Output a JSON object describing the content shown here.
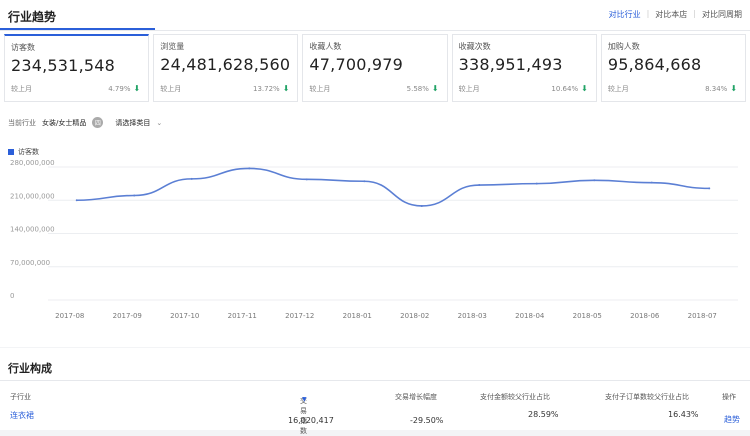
{
  "header": {
    "title": "行业趋势",
    "compare": [
      "对比行业",
      "对比本店",
      "对比同周期"
    ]
  },
  "metrics": [
    {
      "label": "访客数",
      "value": "234,531,548",
      "foot_label": "较上月",
      "pct": "4.79%",
      "trend": "down"
    },
    {
      "label": "浏览量",
      "value": "24,481,628,560",
      "foot_label": "较上月",
      "pct": "13.72%",
      "trend": "down"
    },
    {
      "label": "收藏人数",
      "value": "47,700,979",
      "foot_label": "较上月",
      "pct": "5.58%",
      "trend": "down"
    },
    {
      "label": "收藏次数",
      "value": "338,951,493",
      "foot_label": "较上月",
      "pct": "10.64%",
      "trend": "down"
    },
    {
      "label": "加购人数",
      "value": "95,864,668",
      "foot_label": "较上月",
      "pct": "8.34%",
      "trend": "down"
    }
  ],
  "filters": {
    "label": "当前行业",
    "category": "女装/女士精品",
    "badge": "四",
    "select_placeholder": "请选择类目"
  },
  "chart_data": {
    "type": "line",
    "categories": [
      "2017-08",
      "2017-09",
      "2017-10",
      "2017-11",
      "2017-12",
      "2018-01",
      "2018-02",
      "2018-03",
      "2018-04",
      "2018-05",
      "2018-06",
      "2018-07"
    ],
    "series": [
      {
        "name": "访客数",
        "values": [
          210000000,
          220000000,
          255000000,
          277000000,
          254000000,
          250000000,
          198000000,
          242000000,
          245000000,
          252000000,
          247000000,
          235000000
        ]
      }
    ],
    "y_ticks": [
      "280,000,000",
      "210,000,000",
      "140,000,000",
      "70,000,000",
      "0"
    ],
    "ylim": [
      0,
      280000000
    ],
    "grid": true,
    "color": "#5b7fd4"
  },
  "composition": {
    "title": "行业构成",
    "columns": [
      "子行业",
      "交易指数",
      "交易增长幅度",
      "支付金额较父行业占比",
      "支付子订单数较父行业占比",
      "操作"
    ],
    "rows": [
      {
        "name": "连衣裙",
        "index": "16,020,417",
        "growth": "-29.50%",
        "pay_share": "28.59%",
        "order_share": "16.43%",
        "action": "趋势"
      }
    ]
  }
}
